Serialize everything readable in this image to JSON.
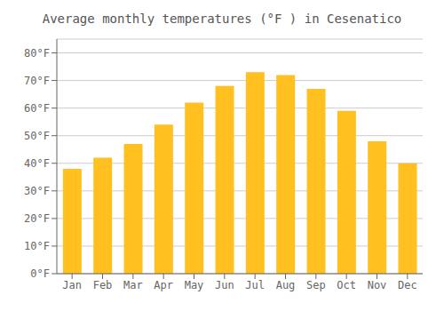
{
  "chart_data": {
    "type": "bar",
    "title": "Average monthly temperatures (°F ) in Cesenatico",
    "categories": [
      "Jan",
      "Feb",
      "Mar",
      "Apr",
      "May",
      "Jun",
      "Jul",
      "Aug",
      "Sep",
      "Oct",
      "Nov",
      "Dec"
    ],
    "values": [
      38,
      42,
      47,
      54,
      62,
      68,
      73,
      72,
      67,
      59,
      48,
      40
    ],
    "color": "#FFC020",
    "ylim": [
      0,
      85
    ],
    "yticks": [
      {
        "value": 0,
        "label": "0°F"
      },
      {
        "value": 10,
        "label": "10°F"
      },
      {
        "value": 20,
        "label": "20°F"
      },
      {
        "value": 30,
        "label": "30°F"
      },
      {
        "value": 40,
        "label": "40°F"
      },
      {
        "value": 50,
        "label": "50°F"
      },
      {
        "value": 60,
        "label": "60°F"
      },
      {
        "value": 70,
        "label": "70°F"
      },
      {
        "value": 80,
        "label": "80°F"
      }
    ],
    "grid": true
  }
}
